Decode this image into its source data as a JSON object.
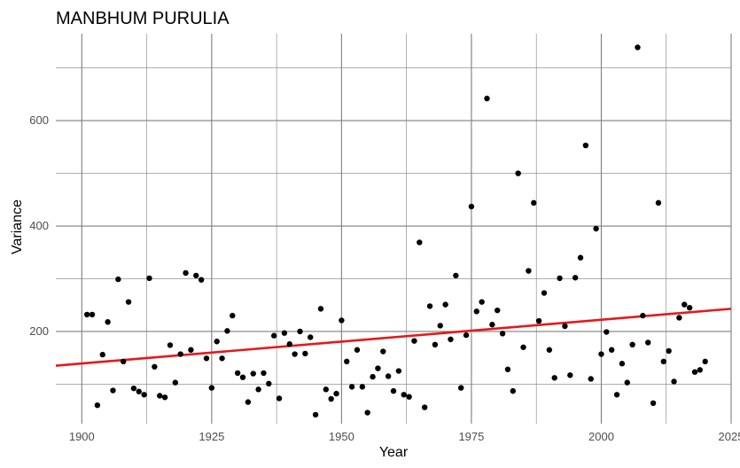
{
  "chart_data": {
    "type": "scatter",
    "title": "MANBHUM PURULIA",
    "xlabel": "Year",
    "ylabel": "Variance",
    "xlim": [
      1895,
      2025
    ],
    "ylim": [
      25,
      765
    ],
    "x_ticks": [
      1900,
      1925,
      1950,
      1975,
      2000,
      2025
    ],
    "y_ticks": [
      200,
      400,
      600
    ],
    "grid": true,
    "colors": {
      "points": "#000000",
      "trend": "#e41a1c",
      "grid": "#7f7f7f"
    },
    "trend_line": {
      "x": [
        1895,
        2025
      ],
      "y": [
        135,
        243
      ]
    },
    "series": [
      {
        "x": [
          1901,
          1902,
          1903,
          1904,
          1905,
          1906,
          1907,
          1908,
          1909,
          1910,
          1911,
          1912,
          1913,
          1914,
          1915,
          1916,
          1917,
          1918,
          1919,
          1920,
          1921,
          1922,
          1923,
          1924,
          1925,
          1926,
          1927,
          1928,
          1929,
          1930,
          1931,
          1932,
          1933,
          1934,
          1935,
          1936,
          1937,
          1938,
          1939,
          1940,
          1941,
          1942,
          1943,
          1944,
          1945,
          1946,
          1947,
          1948,
          1949,
          1950,
          1951,
          1952,
          1953,
          1954,
          1955,
          1956,
          1957,
          1958,
          1959,
          1960,
          1961,
          1962,
          1963,
          1964,
          1965,
          1966,
          1967,
          1968,
          1969,
          1970,
          1971,
          1972,
          1973,
          1974,
          1975,
          1976,
          1977,
          1978,
          1979,
          1980,
          1981,
          1982,
          1983,
          1984,
          1985,
          1986,
          1987,
          1988,
          1989,
          1990,
          1991,
          1992,
          1993,
          1994,
          1995,
          1996,
          1997,
          1998,
          1999,
          2000,
          2001,
          2002,
          2003,
          2004,
          2005,
          2006,
          2007,
          2008,
          2009,
          2010,
          2011,
          2012,
          2013,
          2014,
          2015,
          2016,
          2017,
          2018,
          2019,
          2020
        ],
        "y": [
          232,
          232,
          60,
          156,
          218,
          88,
          299,
          143,
          256,
          92,
          86,
          80,
          301,
          133,
          78,
          75,
          174,
          103,
          157,
          311,
          165,
          306,
          298,
          149,
          93,
          181,
          149,
          201,
          230,
          121,
          113,
          66,
          120,
          90,
          121,
          101,
          192,
          73,
          197,
          176,
          157,
          200,
          158,
          189,
          42,
          243,
          90,
          72,
          82,
          221,
          143,
          95,
          165,
          95,
          46,
          114,
          130,
          162,
          115,
          87,
          125,
          80,
          76,
          182,
          369,
          56,
          248,
          175,
          211,
          251,
          185,
          306,
          93,
          193,
          437,
          238,
          256,
          642,
          213,
          240,
          196,
          128,
          87,
          500,
          170,
          315,
          444,
          220,
          273,
          165,
          112,
          301,
          210,
          117,
          302,
          340,
          553,
          110,
          395,
          157,
          199,
          165,
          80,
          139,
          103,
          175,
          739,
          230,
          179,
          64,
          444,
          143,
          163,
          105,
          226,
          251,
          245,
          123,
          127,
          143
        ]
      }
    ]
  }
}
